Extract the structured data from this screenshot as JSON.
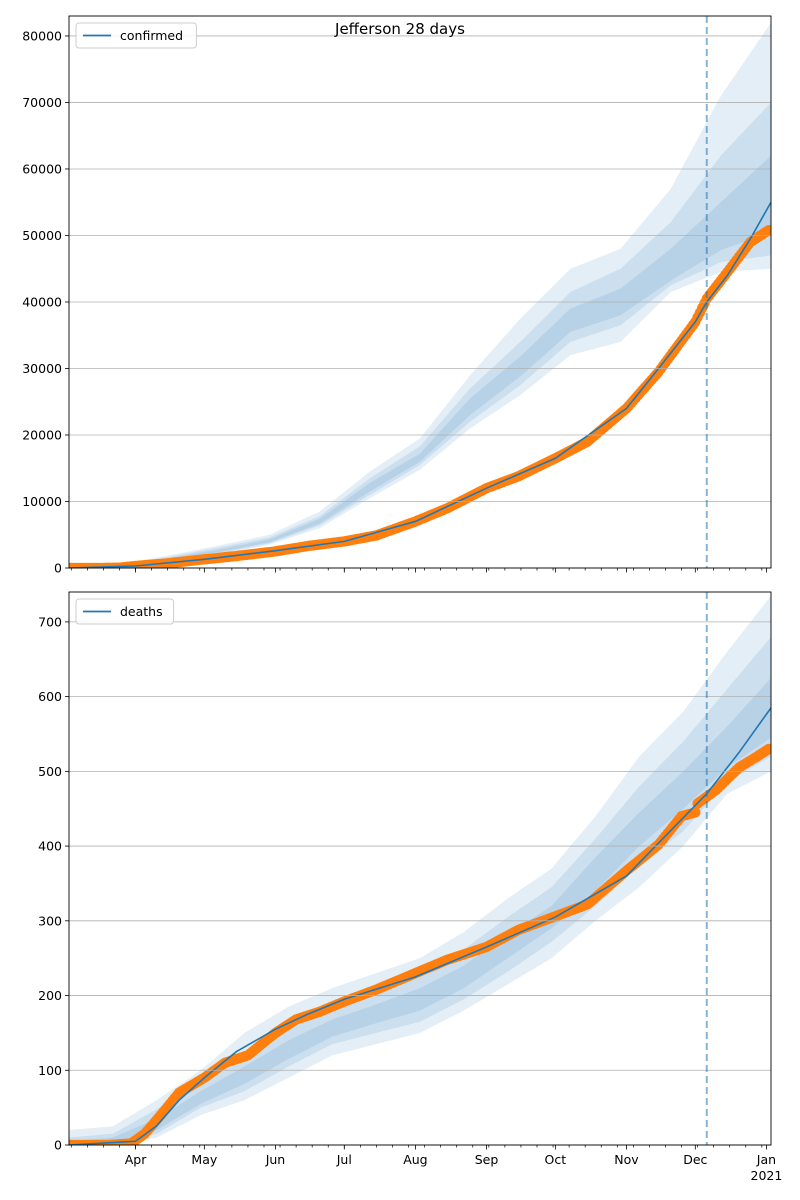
{
  "figure": {
    "title": "Jefferson 28 days"
  },
  "colors": {
    "model_line": "#1f77b4",
    "band": "#1f77b4",
    "observed": "#ff7f0e",
    "forecast_marker": "#1f77b4",
    "grid": "#b0b0b0",
    "axis": "#000000"
  },
  "chart_data": [
    {
      "type": "line",
      "title": "",
      "xlabel": "",
      "ylabel": "",
      "legend": {
        "placement": "top-left",
        "entries": [
          "confirmed"
        ]
      },
      "grid": "y",
      "xlim": [
        "2020-03-03",
        "2021-01-03"
      ],
      "ylim": [
        0,
        83000
      ],
      "y_ticks": [
        0,
        10000,
        20000,
        30000,
        40000,
        50000,
        60000,
        70000,
        80000
      ],
      "x_tick_labels": [],
      "forecast_start": "2020-12-06",
      "series": [
        {
          "name": "confirmed",
          "kind": "model",
          "points": [
            [
              "2020-03-03",
              0
            ],
            [
              "2020-04-01",
              300
            ],
            [
              "2020-05-01",
              1300
            ],
            [
              "2020-06-01",
              2600
            ],
            [
              "2020-07-01",
              4000
            ],
            [
              "2020-08-01",
              7000
            ],
            [
              "2020-09-01",
              12000
            ],
            [
              "2020-10-01",
              16500
            ],
            [
              "2020-11-01",
              24000
            ],
            [
              "2020-11-15",
              30000
            ],
            [
              "2020-12-01",
              37000
            ],
            [
              "2020-12-06",
              40000
            ],
            [
              "2020-12-15",
              44000
            ],
            [
              "2020-12-25",
              49500
            ],
            [
              "2021-01-03",
              55000
            ]
          ]
        },
        {
          "kind": "observed",
          "points": [
            [
              "2020-03-03",
              0
            ],
            [
              "2020-03-15",
              0
            ],
            [
              "2020-03-25",
              50
            ],
            [
              "2020-04-01",
              300
            ],
            [
              "2020-04-15",
              700
            ],
            [
              "2020-05-01",
              1300
            ],
            [
              "2020-05-15",
              1800
            ],
            [
              "2020-06-01",
              2500
            ],
            [
              "2020-06-15",
              3300
            ],
            [
              "2020-07-01",
              4000
            ],
            [
              "2020-07-15",
              4900
            ],
            [
              "2020-08-01",
              7000
            ],
            [
              "2020-08-15",
              9000
            ],
            [
              "2020-09-01",
              12000
            ],
            [
              "2020-09-15",
              13800
            ],
            [
              "2020-10-01",
              16500
            ],
            [
              "2020-10-15",
              19000
            ],
            [
              "2020-11-01",
              24000
            ],
            [
              "2020-11-15",
              29500
            ],
            [
              "2020-12-01",
              37000
            ],
            [
              "2020-12-06",
              40500
            ],
            [
              "2020-12-15",
              44500
            ],
            [
              "2020-12-25",
              49000
            ],
            [
              "2021-01-02",
              50800
            ]
          ]
        }
      ],
      "bands": [
        {
          "level": "outer",
          "start": "2020-03-03",
          "lower": [
            0,
            100,
            900,
            2000,
            3500,
            6000,
            10500,
            14800,
            21000,
            26000,
            32000,
            34000,
            41500,
            44500,
            45000
          ],
          "upper": [
            0,
            600,
            1900,
            3400,
            5000,
            8500,
            14500,
            19500,
            29000,
            37500,
            45000,
            48000,
            57000,
            71000,
            82000
          ]
        },
        {
          "level": "middle",
          "lower": [
            0,
            150,
            1000,
            2200,
            3700,
            6400,
            11000,
            15500,
            22000,
            27500,
            34000,
            36500,
            42500,
            46000,
            47000
          ],
          "upper": [
            0,
            500,
            1700,
            3100,
            4600,
            7800,
            13500,
            18300,
            27000,
            34000,
            41500,
            45000,
            52000,
            62000,
            70000
          ]
        },
        {
          "level": "inner",
          "lower": [
            0,
            200,
            1150,
            2400,
            3850,
            6700,
            11500,
            16000,
            23000,
            28800,
            35500,
            38000,
            43200,
            47800,
            50500
          ],
          "upper": [
            0,
            400,
            1500,
            2800,
            4300,
            7400,
            12800,
            17200,
            25500,
            31800,
            39000,
            42000,
            48000,
            55000,
            62000
          ]
        }
      ]
    },
    {
      "type": "line",
      "title": "",
      "xlabel": "",
      "ylabel": "",
      "legend": {
        "placement": "top-left",
        "entries": [
          "deaths"
        ]
      },
      "grid": "y",
      "xlim": [
        "2020-03-03",
        "2021-01-03"
      ],
      "ylim": [
        0,
        740
      ],
      "y_ticks": [
        0,
        100,
        200,
        300,
        400,
        500,
        600,
        700
      ],
      "x_tick_labels": [
        [
          "2020-04-01",
          "Apr"
        ],
        [
          "2020-05-01",
          "May"
        ],
        [
          "2020-06-01",
          "Jun"
        ],
        [
          "2020-07-01",
          "Jul"
        ],
        [
          "2020-08-01",
          "Aug"
        ],
        [
          "2020-09-01",
          "Sep"
        ],
        [
          "2020-10-01",
          "Oct"
        ],
        [
          "2020-11-01",
          "Nov"
        ],
        [
          "2020-12-01",
          "Dec"
        ],
        [
          "2021-01-01",
          "Jan"
        ]
      ],
      "x_year_label": "2021",
      "forecast_start": "2020-12-06",
      "series": [
        {
          "name": "deaths",
          "kind": "model",
          "points": [
            [
              "2020-03-03",
              0
            ],
            [
              "2020-04-01",
              5
            ],
            [
              "2020-04-10",
              25
            ],
            [
              "2020-04-20",
              60
            ],
            [
              "2020-05-01",
              90
            ],
            [
              "2020-05-15",
              125
            ],
            [
              "2020-06-01",
              155
            ],
            [
              "2020-06-15",
              175
            ],
            [
              "2020-07-01",
              195
            ],
            [
              "2020-08-01",
              225
            ],
            [
              "2020-09-01",
              265
            ],
            [
              "2020-10-01",
              305
            ],
            [
              "2020-11-01",
              360
            ],
            [
              "2020-11-20",
              420
            ],
            [
              "2020-12-06",
              470
            ],
            [
              "2020-12-20",
              525
            ],
            [
              "2021-01-03",
              585
            ]
          ]
        },
        {
          "kind": "observed",
          "points": [
            [
              "2020-03-03",
              0
            ],
            [
              "2020-03-20",
              0
            ],
            [
              "2020-03-30",
              2
            ],
            [
              "2020-04-05",
              15
            ],
            [
              "2020-04-12",
              40
            ],
            [
              "2020-04-20",
              70
            ],
            [
              "2020-05-01",
              90
            ],
            [
              "2020-05-10",
              110
            ],
            [
              "2020-05-20",
              120
            ],
            [
              "2020-06-01",
              150
            ],
            [
              "2020-06-10",
              168
            ],
            [
              "2020-06-20",
              178
            ],
            [
              "2020-07-01",
              192
            ],
            [
              "2020-07-15",
              208
            ],
            [
              "2020-08-01",
              230
            ],
            [
              "2020-08-15",
              248
            ],
            [
              "2020-09-01",
              265
            ],
            [
              "2020-09-15",
              288
            ],
            [
              "2020-10-01",
              306
            ],
            [
              "2020-10-15",
              322
            ],
            [
              "2020-11-01",
              367
            ],
            [
              "2020-11-15",
              402
            ],
            [
              "2020-11-25",
              440
            ],
            [
              "2020-12-01",
              445
            ],
            [
              "2020-12-02",
              457
            ],
            [
              "2020-12-10",
              475
            ],
            [
              "2020-12-20",
              505
            ],
            [
              "2020-12-28",
              520
            ],
            [
              "2021-01-02",
              530
            ]
          ]
        }
      ],
      "bands": [
        {
          "level": "outer",
          "start": "2020-03-03",
          "lower": [
            0,
            0,
            10,
            40,
            60,
            90,
            120,
            135,
            150,
            180,
            215,
            250,
            300,
            345,
            400,
            470,
            500
          ],
          "upper": [
            20,
            25,
            60,
            100,
            150,
            185,
            210,
            230,
            250,
            285,
            330,
            370,
            440,
            520,
            580,
            660,
            735
          ]
        },
        {
          "level": "middle",
          "lower": [
            0,
            0,
            15,
            50,
            72,
            105,
            135,
            150,
            165,
            195,
            232,
            272,
            320,
            375,
            420,
            485,
            520
          ],
          "upper": [
            10,
            15,
            48,
            88,
            125,
            160,
            190,
            210,
            230,
            262,
            305,
            345,
            410,
            480,
            540,
            610,
            680
          ]
        },
        {
          "level": "inner",
          "lower": [
            0,
            2,
            20,
            55,
            82,
            115,
            145,
            163,
            180,
            210,
            250,
            290,
            340,
            400,
            450,
            505,
            545
          ],
          "upper": [
            5,
            10,
            35,
            72,
            105,
            140,
            168,
            188,
            210,
            240,
            282,
            320,
            385,
            445,
            500,
            560,
            625
          ]
        }
      ]
    }
  ]
}
